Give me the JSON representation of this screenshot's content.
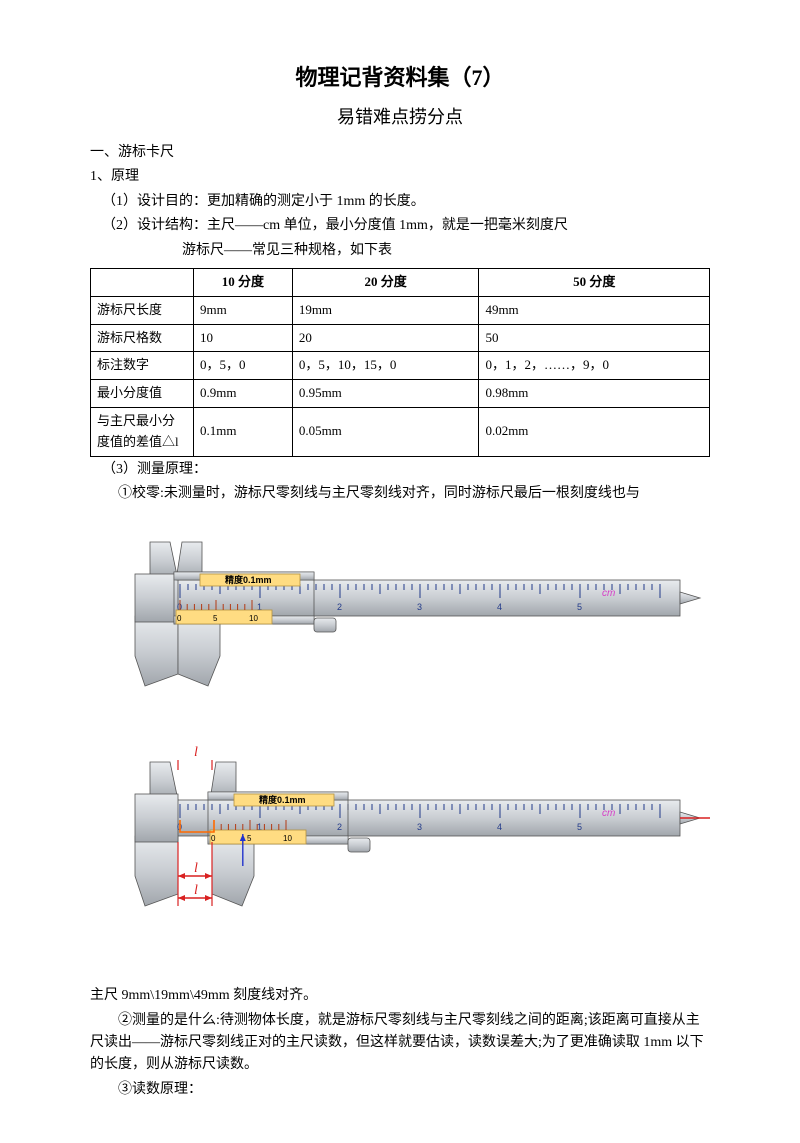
{
  "title": "物理记背资料集（7）",
  "subtitle": "易错难点捞分点",
  "sec1": {
    "head": "一、游标卡尺",
    "p1": "1、原理",
    "p2": "（1）设计目的：更加精确的测定小于 1mm 的长度。",
    "p3": "（2）设计结构：主尺——cm 单位，最小分度值 1mm，就是一把毫米刻度尺",
    "p4": "游标尺——常见三种规格，如下表"
  },
  "table": {
    "headers": [
      "",
      "10 分度",
      "20 分度",
      "50 分度"
    ],
    "rows": [
      {
        "h": "游标尺长度",
        "c": [
          "9mm",
          "19mm",
          "49mm"
        ]
      },
      {
        "h": "游标尺格数",
        "c": [
          "10",
          "20",
          "50"
        ]
      },
      {
        "h": "标注数字",
        "c": [
          "0，5，0",
          "0，5，10，15，0",
          "0，1，2，……，9，0"
        ]
      },
      {
        "h": "最小分度值",
        "c": [
          "0.9mm",
          "0.95mm",
          "0.98mm"
        ]
      },
      {
        "h": "与主尺最小分度值的差值△l",
        "c": [
          "0.1mm",
          "0.05mm",
          "0.02mm"
        ]
      }
    ]
  },
  "sec2": {
    "p1": "（3）测量原理：",
    "p2": "①校零:未测量时，游标尺零刻线与主尺零刻线对齐，同时游标尺最后一根刻度线也与"
  },
  "caliper": {
    "precision_label": "精度0.1mm",
    "cm_label": "cm",
    "main_major_labels": [
      "0",
      "1",
      "2",
      "3",
      "4",
      "5"
    ],
    "vernier_labels": [
      "0",
      "5",
      "10"
    ],
    "colors": {
      "body": "#c9cdd2",
      "body_light": "#e8ebee",
      "body_dark": "#a1a6ac",
      "edge": "#555555",
      "window": "#ffdc82",
      "window_edge": "#b5933f",
      "tick_main": "#223a8a",
      "tick_vernier": "#b33a14",
      "cm_text": "#d63cc7",
      "annot": "#d92121",
      "arrow_blue": "#2233cc",
      "highlight": "#ff6a00"
    }
  },
  "sec3": {
    "p1": "主尺 9mm\\19mm\\49mm 刻度线对齐。",
    "p2": "②测量的是什么:待测物体长度，就是游标尺零刻线与主尺零刻线之间的距离;该距离可直接从主尺读出——游标尺零刻线正对的主尺读数，但这样就要估读，读数误差大;为了更准确读取 1mm 以下的长度，则从游标尺读数。",
    "p3": "③读数原理："
  },
  "annot": {
    "l": "l"
  }
}
